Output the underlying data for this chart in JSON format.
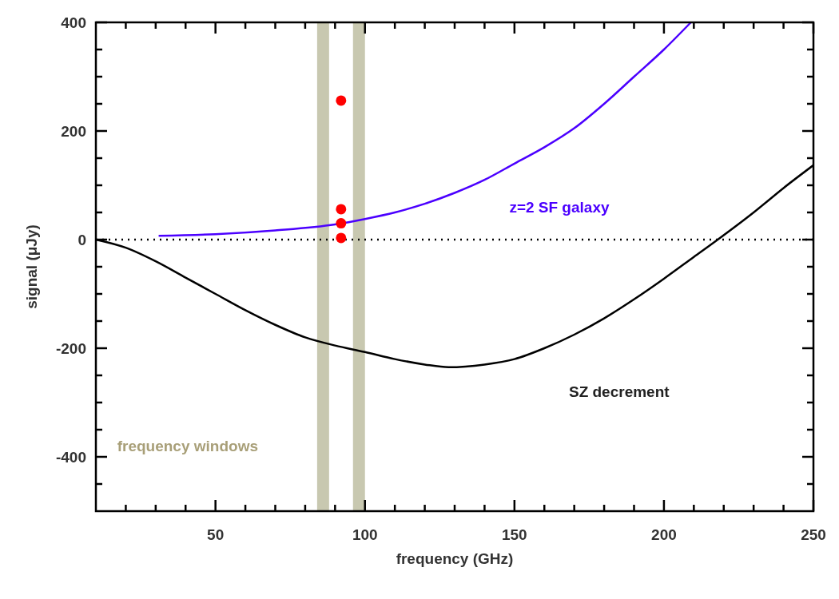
{
  "chart_data": {
    "type": "line",
    "xlabel": "frequency (GHz)",
    "ylabel": "signal (μJy)",
    "xlim": [
      10,
      250
    ],
    "ylim": [
      -500,
      400
    ],
    "xticks": [
      {
        "value": 20,
        "label": null
      },
      {
        "value": 30,
        "label": null
      },
      {
        "value": 40,
        "label": null
      },
      50,
      {
        "value": 60,
        "label": null
      },
      {
        "value": 70,
        "label": null
      },
      {
        "value": 80,
        "label": null
      },
      {
        "value": 90,
        "label": null
      },
      100,
      {
        "value": 110,
        "label": null
      },
      {
        "value": 120,
        "label": null
      },
      {
        "value": 130,
        "label": null
      },
      {
        "value": 140,
        "label": null
      },
      150,
      {
        "value": 160,
        "label": null
      },
      {
        "value": 170,
        "label": null
      },
      {
        "value": 180,
        "label": null
      },
      {
        "value": 190,
        "label": null
      },
      200,
      {
        "value": 210,
        "label": null
      },
      {
        "value": 220,
        "label": null
      },
      {
        "value": 230,
        "label": null
      },
      {
        "value": 240,
        "label": null
      },
      250
    ],
    "yticks": [
      {
        "value": -450,
        "label": null
      },
      -400,
      {
        "value": -350,
        "label": null
      },
      {
        "value": -300,
        "label": null
      },
      {
        "value": -250,
        "label": null
      },
      -200,
      {
        "value": -150,
        "label": null
      },
      {
        "value": -100,
        "label": null
      },
      {
        "value": -50,
        "label": null
      },
      0,
      {
        "value": 50,
        "label": null
      },
      {
        "value": 100,
        "label": null
      },
      {
        "value": 150,
        "label": null
      },
      200,
      {
        "value": 250,
        "label": null
      },
      {
        "value": 300,
        "label": null
      },
      {
        "value": 350,
        "label": null
      },
      400
    ],
    "grid": false,
    "annotations": [
      "frequency windows"
    ],
    "series": [
      {
        "name": "z=2 SF galaxy",
        "color": "#4b00ff",
        "x": [
          31,
          50,
          70,
          90,
          100,
          110,
          120,
          130,
          140,
          150,
          160,
          170,
          180,
          190,
          200,
          209
        ],
        "values": [
          7,
          10,
          17,
          28,
          38,
          50,
          66,
          86,
          110,
          140,
          170,
          205,
          250,
          300,
          350,
          400
        ]
      },
      {
        "name": "SZ decrement",
        "color": "#000000",
        "x": [
          10,
          20,
          30,
          40,
          50,
          60,
          70,
          80,
          90,
          100,
          110,
          120,
          128,
          140,
          150,
          160,
          170,
          180,
          190,
          200,
          210,
          218,
          230,
          240,
          250
        ],
        "values": [
          0,
          -15,
          -40,
          -70,
          -100,
          -130,
          -157,
          -180,
          -195,
          -207,
          -220,
          -230,
          -235,
          -230,
          -220,
          -200,
          -175,
          -145,
          -110,
          -72,
          -32,
          0,
          50,
          95,
          137
        ]
      },
      {
        "type": "scatter",
        "color": "#ff0000",
        "marker": "circle",
        "x": [
          92,
          92,
          92,
          92
        ],
        "values": [
          256,
          56,
          30,
          3
        ]
      }
    ],
    "ref_lines": [
      {
        "axis": "y",
        "value": 0,
        "color": "#000000",
        "line_style": "dotted"
      }
    ],
    "bands": [
      {
        "axis": "x",
        "from": 84,
        "to": 88,
        "color": "#c8c8b0"
      },
      {
        "axis": "x",
        "from": 96,
        "to": 100,
        "color": "#c8c8b0"
      }
    ]
  }
}
